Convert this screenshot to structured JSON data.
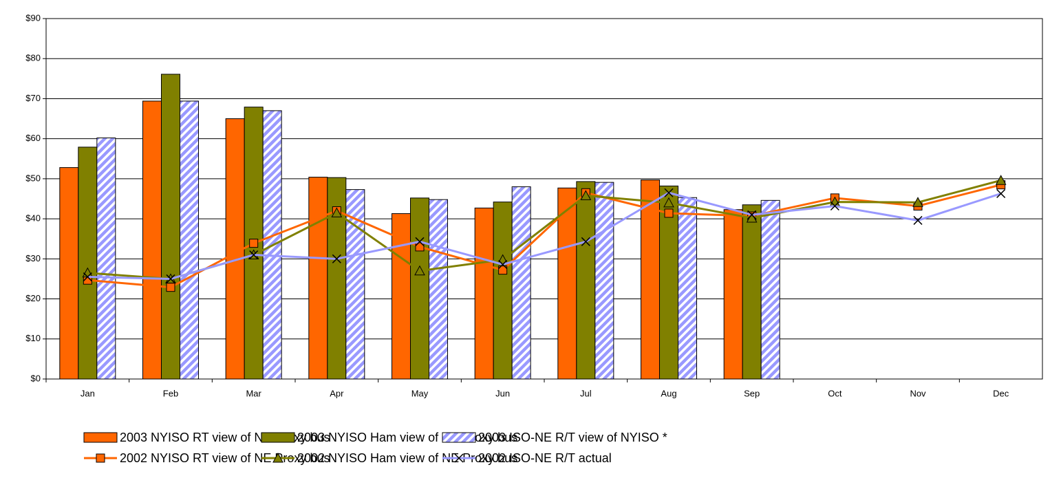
{
  "chart_data": {
    "type": "bar",
    "categories": [
      "Jan",
      "Feb",
      "Mar",
      "Apr",
      "May",
      "Jun",
      "Jul",
      "Aug",
      "Sep",
      "Oct",
      "Nov",
      "Dec"
    ],
    "series": [
      {
        "name": "2003 NYISO RT view of NE Proxy bus",
        "type": "bar",
        "color": "#ff6600",
        "values": [
          52.8,
          69.4,
          65.0,
          50.4,
          41.3,
          42.7,
          47.7,
          49.7,
          42.3,
          null,
          null,
          null
        ]
      },
      {
        "name": "2003 NYISO Ham view of NE Proxy bus",
        "type": "bar",
        "color": "#808000",
        "values": [
          57.9,
          76.1,
          67.9,
          50.3,
          45.2,
          44.2,
          49.3,
          48.2,
          43.5,
          null,
          null,
          null
        ]
      },
      {
        "name": "2003 ISO-NE R/T view of NYISO *",
        "type": "bar",
        "color": "#9999ff",
        "pattern": "striped",
        "values": [
          60.2,
          69.4,
          67.0,
          47.3,
          44.8,
          48.0,
          49.1,
          45.3,
          44.6,
          null,
          null,
          null
        ]
      },
      {
        "name": "2002 NYISO RT view of NE Proxy bus",
        "type": "line",
        "marker": "square",
        "color": "#ff6600",
        "values": [
          24.7,
          22.9,
          33.9,
          42.0,
          33.0,
          27.2,
          46.5,
          41.4,
          40.7,
          45.2,
          43.2,
          48.5
        ]
      },
      {
        "name": "2002 NYISO Ham view of NE Proxy bus",
        "type": "line",
        "marker": "triangle",
        "color": "#808000",
        "values": [
          26.5,
          25.0,
          31.0,
          41.5,
          27.0,
          29.8,
          45.8,
          44.0,
          40.2,
          44.2,
          44.1,
          49.6
        ]
      },
      {
        "name": "2002 ISO-NE R/T actual",
        "type": "line",
        "marker": "x",
        "color": "#9999ff",
        "values": [
          25.5,
          25.0,
          31.0,
          30.0,
          34.3,
          28.6,
          34.3,
          46.5,
          41.0,
          43.2,
          39.6,
          46.3
        ]
      }
    ],
    "ylim": [
      0,
      90
    ],
    "yticks": [
      {
        "value": 0,
        "label": "$0"
      },
      {
        "value": 10,
        "label": "$10"
      },
      {
        "value": 20,
        "label": "$20"
      },
      {
        "value": 30,
        "label": "$30"
      },
      {
        "value": 40,
        "label": "$40"
      },
      {
        "value": 50,
        "label": "$50"
      },
      {
        "value": 60,
        "label": "$60"
      },
      {
        "value": 70,
        "label": "$70"
      },
      {
        "value": 80,
        "label": "$80"
      },
      {
        "value": 90,
        "label": "$90"
      }
    ],
    "grid": true,
    "legend": "bottom"
  }
}
